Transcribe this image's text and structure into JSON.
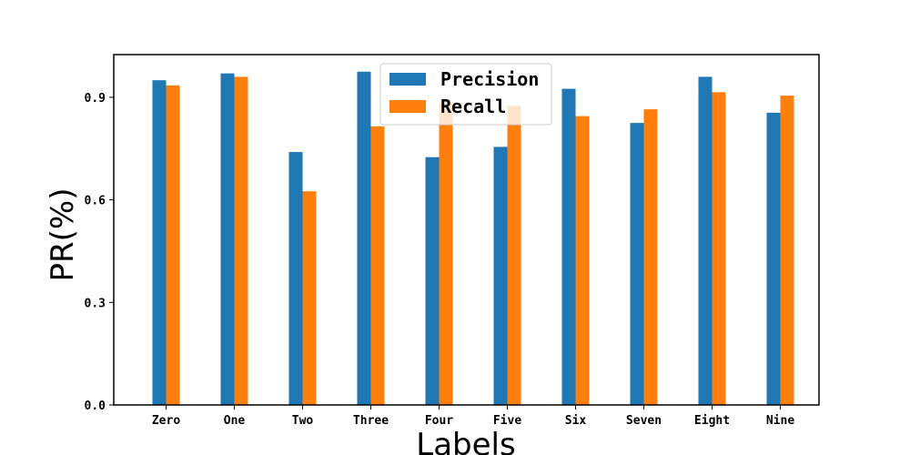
{
  "chart_data": {
    "type": "bar",
    "categories": [
      "Zero",
      "One",
      "Two",
      "Three",
      "Four",
      "Five",
      "Six",
      "Seven",
      "Eight",
      "Nine"
    ],
    "series": [
      {
        "name": "Precision",
        "color": "#1f77b4",
        "values": [
          0.95,
          0.97,
          0.74,
          0.975,
          0.725,
          0.755,
          0.925,
          0.825,
          0.96,
          0.855
        ]
      },
      {
        "name": "Recall",
        "color": "#ff7f0e",
        "values": [
          0.935,
          0.96,
          0.625,
          0.815,
          0.885,
          0.875,
          0.845,
          0.865,
          0.915,
          0.905
        ]
      }
    ],
    "title": "",
    "xlabel": "Labels",
    "ylabel": "PR(%)",
    "ylim": [
      0,
      1.025
    ],
    "yticks": [
      "0.0",
      "0.3",
      "0.6",
      "0.9"
    ],
    "grid": false,
    "legend_position": "top-center"
  }
}
